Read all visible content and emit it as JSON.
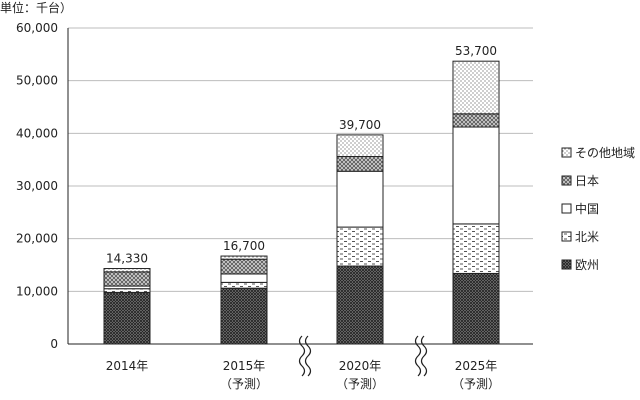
{
  "chart_data": {
    "type": "bar",
    "stacked": true,
    "unit_label": "単位：千台）",
    "categories": [
      {
        "line1": "2014年",
        "line2": ""
      },
      {
        "line1": "2015年",
        "line2": "（予測）"
      },
      {
        "line1": "2020年",
        "line2": "（予測）"
      },
      {
        "line1": "2025年",
        "line2": "（予測）"
      }
    ],
    "totals": [
      "14,330",
      "16,700",
      "39,700",
      "53,700"
    ],
    "ylim": [
      0,
      60000
    ],
    "yticks": [
      {
        "value": 0,
        "label": "0"
      },
      {
        "value": 10000,
        "label": "10,000"
      },
      {
        "value": 20000,
        "label": "20,000"
      },
      {
        "value": 30000,
        "label": "30,000"
      },
      {
        "value": 40000,
        "label": "40,000"
      },
      {
        "value": 50000,
        "label": "50,000"
      },
      {
        "value": 60000,
        "label": "60,000"
      }
    ],
    "grid": true,
    "axis_breaks": [
      "between 2015年 and 2020年",
      "between 2020年 and 2025年"
    ],
    "legend_position": "right",
    "series": [
      {
        "name": "欧州",
        "pattern": "dense-crosshatch",
        "values": [
          9800,
          10600,
          14800,
          13400
        ]
      },
      {
        "name": "北米",
        "pattern": "dashes",
        "values": [
          700,
          1100,
          7400,
          9400
        ]
      },
      {
        "name": "中国",
        "pattern": "white",
        "values": [
          500,
          1600,
          10600,
          18400
        ]
      },
      {
        "name": "日本",
        "pattern": "crosshatch",
        "values": [
          2700,
          2800,
          2800,
          2500
        ]
      },
      {
        "name": "その他地域",
        "pattern": "dots",
        "values": [
          630,
          600,
          4100,
          10000
        ]
      }
    ]
  }
}
